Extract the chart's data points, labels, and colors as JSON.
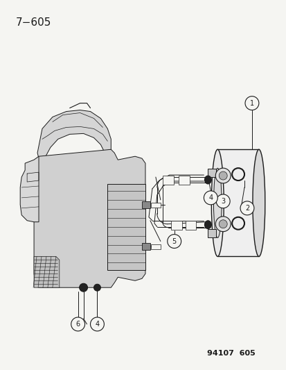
{
  "title": "7−605",
  "footer": "94107  605",
  "bg_color": "#f5f5f2",
  "line_color": "#1a1a1a",
  "title_fontsize": 11,
  "footer_fontsize": 8,
  "fig_width": 4.14,
  "fig_height": 5.33,
  "dpi": 100
}
